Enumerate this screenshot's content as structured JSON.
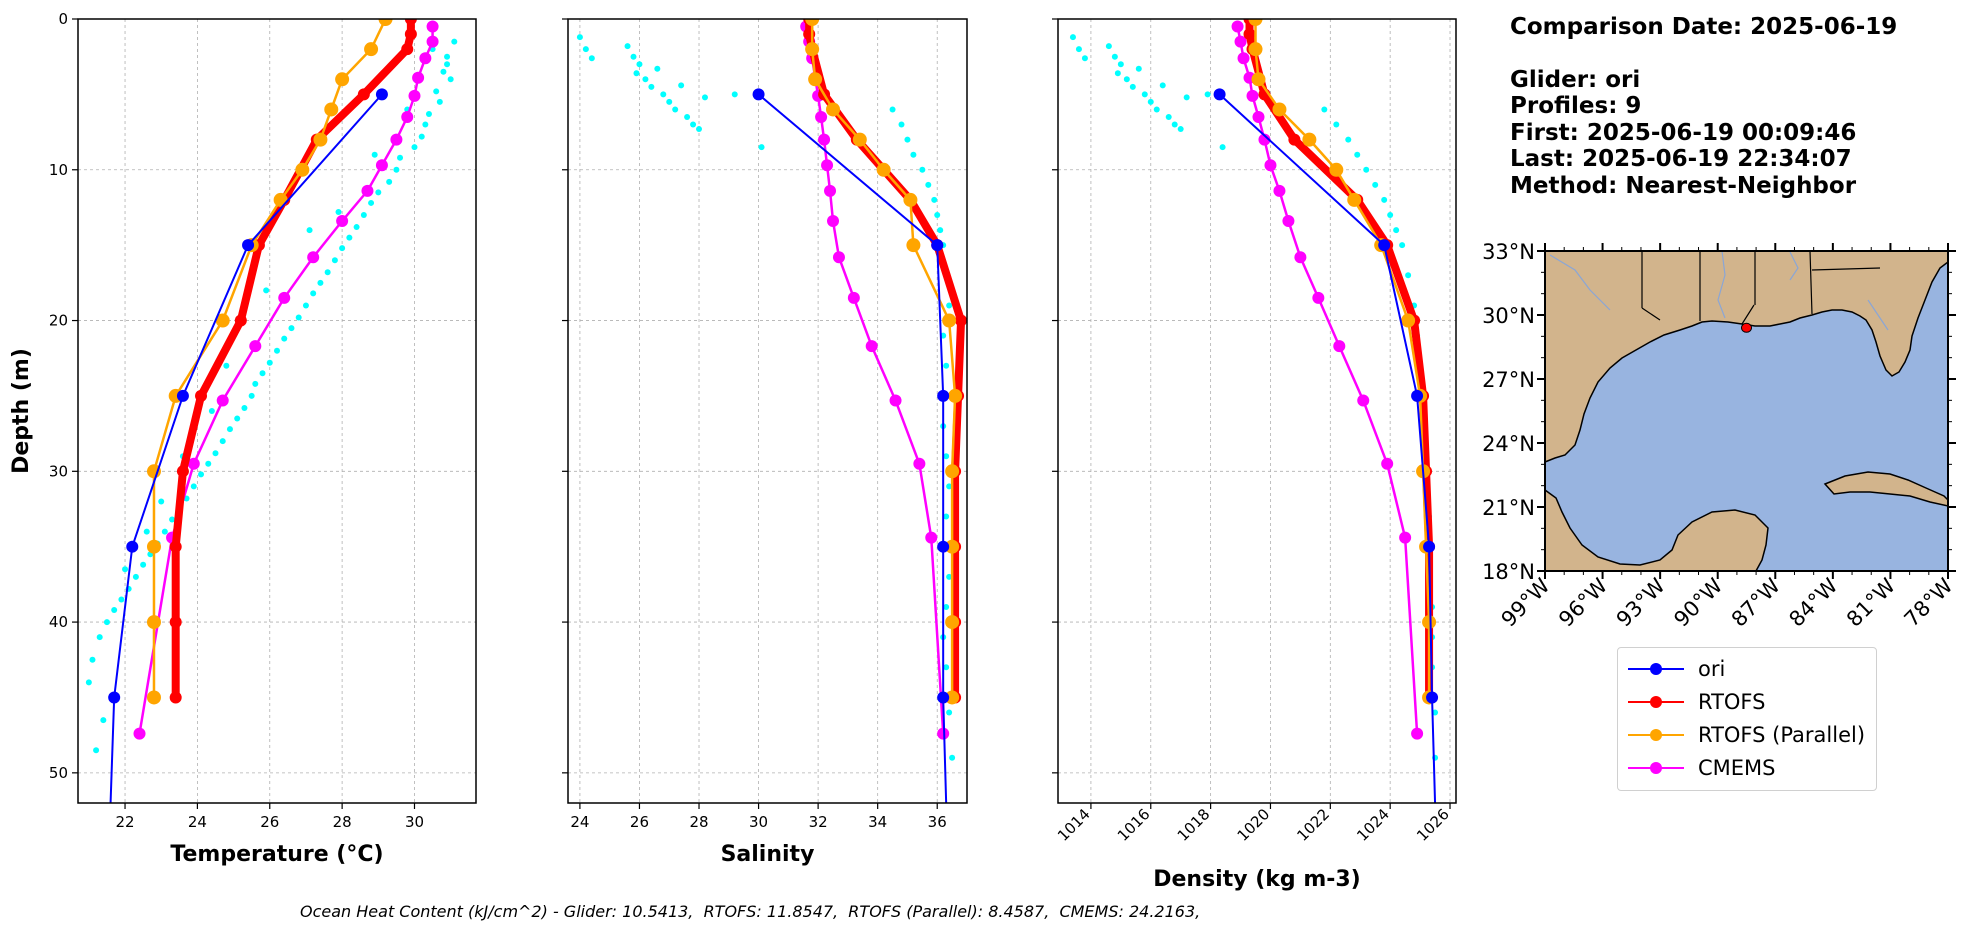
{
  "info": {
    "comparison_date": "Comparison Date: 2025-06-19",
    "glider": "Glider: ori",
    "profiles": "Profiles: 9",
    "first": "First: 2025-06-19 00:09:46",
    "last": "Last: 2025-06-19 22:34:07",
    "method": "Method: Nearest-Neighbor"
  },
  "footer": "Ocean Heat Content (kJ/cm^2) - Glider: 10.5413,  RTOFS: 11.8547,  RTOFS (Parallel): 8.4587,  CMEMS: 24.2163,",
  "colors": {
    "ori": "#0000ff",
    "rtofs": "#ff0000",
    "rtofs_parallel": "#ffa500",
    "cmems": "#ff00ff",
    "raw_points": "#00ffff",
    "land": "#d2b48c",
    "ocean": "#98b4e0"
  },
  "legend": [
    {
      "label": "ori",
      "color": "#0000ff"
    },
    {
      "label": "RTOFS",
      "color": "#ff0000"
    },
    {
      "label": "RTOFS (Parallel)",
      "color": "#ffa500"
    },
    {
      "label": "CMEMS",
      "color": "#ff00ff"
    }
  ],
  "chart_data": [
    {
      "type": "line",
      "xlabel": "Temperature (°C)",
      "ylabel": "Depth (m)",
      "xlim": [
        20.7,
        31.7
      ],
      "ylim": [
        52,
        0
      ],
      "xticks": [
        22,
        24,
        26,
        28,
        30
      ],
      "yticks": [
        0,
        10,
        20,
        30,
        40,
        50
      ],
      "grid": true,
      "series": [
        {
          "name": "ori",
          "x": [
            29.1,
            25.4,
            23.6,
            22.2,
            21.7,
            21.6
          ],
          "y": [
            5,
            15,
            25,
            35,
            45,
            52
          ]
        },
        {
          "name": "RTOFS",
          "x": [
            29.9,
            29.9,
            29.8,
            28.6,
            27.3,
            26.4,
            25.7,
            25.2,
            24.1,
            23.6,
            23.4,
            23.4,
            23.4
          ],
          "y": [
            0,
            1,
            2,
            5,
            8,
            12,
            15,
            20,
            25,
            30,
            35,
            40,
            45
          ]
        },
        {
          "name": "RTOFS (Parallel)",
          "x": [
            29.2,
            28.8,
            28.0,
            27.7,
            27.4,
            26.9,
            26.3,
            25.5,
            24.7,
            23.4,
            22.8,
            22.8,
            22.8,
            22.8
          ],
          "y": [
            0,
            2,
            4,
            6,
            8,
            10,
            12,
            15,
            20,
            25,
            30,
            35,
            40,
            45
          ]
        },
        {
          "name": "CMEMS",
          "x": [
            30.5,
            30.5,
            30.3,
            30.1,
            30.0,
            29.8,
            29.5,
            29.1,
            28.7,
            28.0,
            27.2,
            26.4,
            25.6,
            24.7,
            23.9,
            23.3,
            22.4
          ],
          "y": [
            0.5,
            1.5,
            2.6,
            3.9,
            5.1,
            6.5,
            8.0,
            9.7,
            11.4,
            13.4,
            15.8,
            18.5,
            21.7,
            25.3,
            29.5,
            34.4,
            47.4
          ]
        }
      ],
      "scatter": {
        "name": "raw_points",
        "color": "#00ffff",
        "x": [
          31.1,
          30.9,
          30.8,
          31.0,
          30.6,
          30.7,
          30.4,
          30.9,
          30.3,
          30.5,
          30.2,
          30.0,
          29.6,
          29.8,
          29.5,
          29.3,
          29.0,
          28.8,
          28.6,
          28.9,
          28.4,
          28.2,
          28.0,
          27.8,
          27.6,
          27.9,
          27.4,
          27.2,
          27.0,
          26.8,
          26.6,
          27.1,
          26.4,
          26.2,
          26.0,
          25.8,
          25.6,
          25.9,
          25.5,
          25.3,
          25.1,
          24.9,
          24.7,
          24.5,
          24.8,
          24.3,
          24.1,
          23.9,
          24.4,
          23.7,
          23.5,
          23.3,
          23.6,
          23.1,
          22.9,
          22.7,
          23.0,
          22.5,
          22.3,
          22.1,
          22.6,
          21.9,
          21.7,
          21.5,
          22.0,
          21.3,
          21.1,
          21.0,
          21.4,
          21.2
        ],
        "y": [
          1.5,
          2.5,
          3.5,
          4.0,
          4.8,
          5.5,
          6.3,
          3.0,
          7.0,
          2.0,
          7.8,
          8.5,
          9.2,
          6.0,
          10.0,
          10.8,
          11.5,
          12.2,
          13.0,
          9.0,
          13.8,
          14.5,
          15.2,
          16.0,
          16.8,
          12.8,
          17.5,
          18.2,
          19.0,
          19.8,
          20.5,
          14.0,
          21.2,
          22.0,
          22.8,
          23.5,
          24.2,
          18.0,
          25.0,
          25.8,
          26.5,
          27.2,
          28.0,
          28.8,
          23.0,
          29.5,
          30.2,
          31.0,
          26.0,
          31.8,
          32.5,
          33.2,
          29.0,
          34.0,
          34.8,
          35.5,
          32.0,
          36.2,
          37.0,
          37.8,
          34.0,
          38.5,
          39.2,
          40.0,
          36.5,
          41.0,
          42.5,
          44.0,
          46.5,
          48.5
        ]
      }
    },
    {
      "type": "line",
      "xlabel": "Salinity",
      "ylabel": "",
      "xlim": [
        23.6,
        37.0
      ],
      "ylim": [
        52,
        0
      ],
      "xticks": [
        24,
        26,
        28,
        30,
        32,
        34,
        36
      ],
      "yticks": [
        0,
        10,
        20,
        30,
        40,
        50
      ],
      "grid": true,
      "series": [
        {
          "name": "ori",
          "x": [
            30.0,
            36.0,
            36.2,
            36.2,
            36.2,
            36.3
          ],
          "y": [
            5,
            15,
            25,
            35,
            45,
            52
          ]
        },
        {
          "name": "RTOFS",
          "x": [
            31.7,
            31.7,
            31.8,
            32.2,
            33.3,
            35.1,
            36.0,
            36.8,
            36.7,
            36.6,
            36.6,
            36.6,
            36.6
          ],
          "y": [
            0,
            1,
            2,
            5,
            8,
            12,
            15,
            20,
            25,
            30,
            35,
            40,
            45
          ]
        },
        {
          "name": "RTOFS (Parallel)",
          "x": [
            31.8,
            31.8,
            31.9,
            32.5,
            33.4,
            34.2,
            35.1,
            35.2,
            36.4,
            36.6,
            36.5,
            36.5,
            36.5,
            36.5
          ],
          "y": [
            0,
            2,
            4,
            6,
            8,
            10,
            12,
            15,
            20,
            25,
            30,
            35,
            40,
            45
          ]
        },
        {
          "name": "CMEMS",
          "x": [
            31.6,
            31.7,
            31.8,
            31.9,
            32.0,
            32.1,
            32.2,
            32.3,
            32.4,
            32.5,
            32.7,
            33.2,
            33.8,
            34.6,
            35.4,
            35.8,
            36.2
          ],
          "y": [
            0.5,
            1.5,
            2.6,
            3.9,
            5.1,
            6.5,
            8.0,
            9.7,
            11.4,
            13.4,
            15.8,
            18.5,
            21.7,
            25.3,
            29.5,
            34.4,
            47.4
          ]
        }
      ],
      "scatter": {
        "name": "raw_points",
        "color": "#00ffff",
        "x": [
          24.0,
          24.2,
          24.4,
          25.6,
          25.8,
          26.0,
          25.9,
          26.2,
          26.4,
          26.6,
          26.8,
          27.0,
          27.2,
          27.4,
          27.6,
          27.8,
          28.0,
          28.2,
          29.2,
          30.1,
          34.5,
          34.8,
          35.0,
          35.2,
          35.5,
          35.7,
          35.9,
          36.0,
          36.1,
          36.2,
          36.3,
          36.4,
          36.2,
          36.3,
          36.4,
          36.2,
          36.3,
          36.4,
          36.3,
          36.2,
          36.4,
          36.3,
          36.2,
          36.3,
          36.4,
          36.5
        ],
        "y": [
          1.2,
          2.0,
          2.6,
          1.8,
          2.5,
          3.0,
          3.6,
          4.0,
          4.5,
          3.3,
          5.0,
          5.5,
          6.0,
          4.4,
          6.5,
          7.0,
          7.3,
          5.2,
          5.0,
          8.5,
          6.0,
          7.0,
          8.0,
          9.0,
          10.0,
          11.0,
          12.0,
          13.0,
          14.0,
          15.0,
          17.0,
          19.0,
          21.0,
          23.0,
          25.0,
          27.0,
          29.0,
          31.0,
          33.0,
          35.0,
          37.0,
          39.0,
          41.0,
          43.0,
          46.0,
          49.0
        ]
      }
    },
    {
      "type": "line",
      "xlabel": "Density (kg m-3)",
      "ylabel": "",
      "xlim": [
        1012.9,
        1026.2
      ],
      "ylim": [
        52,
        0
      ],
      "xticks": [
        1014,
        1016,
        1018,
        1020,
        1022,
        1024,
        1026
      ],
      "yticks": [
        0,
        10,
        20,
        30,
        40,
        50
      ],
      "grid": true,
      "series": [
        {
          "name": "ori",
          "x": [
            1018.3,
            1023.8,
            1024.9,
            1025.3,
            1025.4,
            1025.5
          ],
          "y": [
            5,
            15,
            25,
            35,
            45,
            52
          ]
        },
        {
          "name": "RTOFS",
          "x": [
            1019.3,
            1019.3,
            1019.4,
            1019.8,
            1020.8,
            1022.9,
            1023.9,
            1024.8,
            1025.1,
            1025.2,
            1025.3,
            1025.3,
            1025.3
          ],
          "y": [
            0,
            1,
            2,
            5,
            8,
            12,
            15,
            20,
            25,
            30,
            35,
            40,
            45
          ]
        },
        {
          "name": "RTOFS (Parallel)",
          "x": [
            1019.5,
            1019.5,
            1019.6,
            1020.3,
            1021.3,
            1022.2,
            1022.8,
            1023.7,
            1024.6,
            1025.0,
            1025.1,
            1025.2,
            1025.3,
            1025.3
          ],
          "y": [
            0,
            2,
            4,
            6,
            8,
            10,
            12,
            15,
            20,
            25,
            30,
            35,
            40,
            45
          ]
        },
        {
          "name": "CMEMS",
          "x": [
            1018.9,
            1019.0,
            1019.1,
            1019.3,
            1019.4,
            1019.6,
            1019.8,
            1020.0,
            1020.3,
            1020.6,
            1021.0,
            1021.6,
            1022.3,
            1023.1,
            1023.9,
            1024.5,
            1024.9
          ],
          "y": [
            0.5,
            1.5,
            2.6,
            3.9,
            5.1,
            6.5,
            8.0,
            9.7,
            11.4,
            13.4,
            15.8,
            18.5,
            21.7,
            25.3,
            29.5,
            34.4,
            47.4
          ]
        }
      ],
      "scatter": {
        "name": "raw_points",
        "color": "#00ffff",
        "x": [
          1013.4,
          1013.6,
          1013.8,
          1014.6,
          1014.8,
          1015.0,
          1014.9,
          1015.2,
          1015.4,
          1015.6,
          1015.8,
          1016.0,
          1016.2,
          1016.4,
          1016.6,
          1016.8,
          1017.0,
          1017.2,
          1017.9,
          1018.4,
          1021.8,
          1022.2,
          1022.6,
          1022.9,
          1023.2,
          1023.5,
          1023.8,
          1024.0,
          1024.2,
          1024.4,
          1024.6,
          1024.8,
          1024.9,
          1025.0,
          1025.1,
          1025.1,
          1025.2,
          1025.2,
          1025.3,
          1025.3,
          1025.3,
          1025.4,
          1025.4,
          1025.4,
          1025.5,
          1025.5
        ],
        "y": [
          1.2,
          2.0,
          2.6,
          1.8,
          2.5,
          3.0,
          3.6,
          4.0,
          4.5,
          3.3,
          5.0,
          5.5,
          6.0,
          4.4,
          6.5,
          7.0,
          7.3,
          5.2,
          5.0,
          8.5,
          6.0,
          7.0,
          8.0,
          9.0,
          10.0,
          11.0,
          12.0,
          13.0,
          14.0,
          15.0,
          17.0,
          19.0,
          21.0,
          23.0,
          25.0,
          27.0,
          29.0,
          31.0,
          33.0,
          35.0,
          37.0,
          39.0,
          41.0,
          43.0,
          46.0,
          49.0
        ]
      }
    }
  ],
  "map": {
    "lat_labels": [
      "33°N",
      "30°N",
      "27°N",
      "24°N",
      "21°N",
      "18°N"
    ],
    "lon_labels": [
      "99°W",
      "96°W",
      "93°W",
      "90°W",
      "87°W",
      "84°W",
      "81°W",
      "78°W"
    ],
    "lon_range": [
      -99,
      -78
    ],
    "lat_range": [
      18,
      33
    ],
    "glider_position": {
      "lon": -88.5,
      "lat": 29.4
    }
  }
}
